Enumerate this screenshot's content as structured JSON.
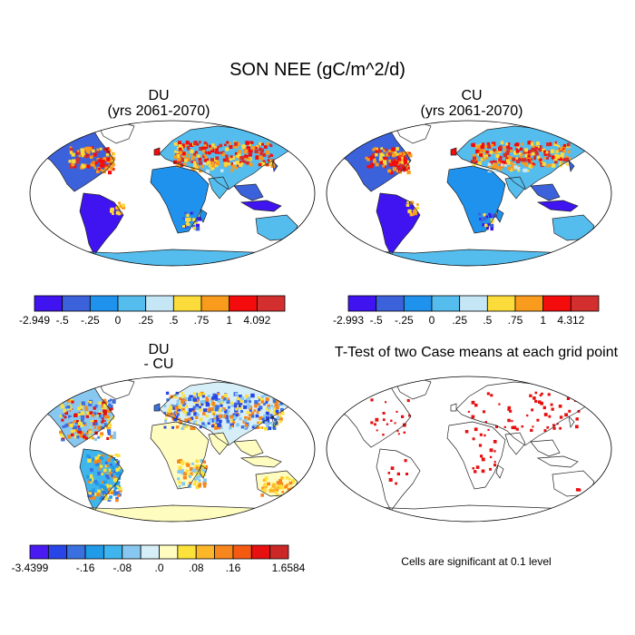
{
  "title": "SON NEE (gC/m^2/d)",
  "panels": [
    {
      "title": "DU",
      "subtitle": "(yrs 2061-2070)",
      "colorbar": {
        "labels": [
          "-2.949",
          "-.5",
          "-.25",
          "0",
          ".25",
          ".5",
          ".75",
          "1",
          "4.092"
        ],
        "colors": [
          "#3f14f0",
          "#3c62db",
          "#1f92ed",
          "#55bdee",
          "#c5e6f5",
          "#fcdc3a",
          "#f99b1c",
          "#f40c0c",
          "#d42f2f"
        ]
      }
    },
    {
      "title": "CU",
      "subtitle": "(yrs 2061-2070)",
      "colorbar": {
        "labels": [
          "-2.993",
          "-.5",
          "-.25",
          "0",
          ".25",
          ".5",
          ".75",
          "1",
          "4.312"
        ],
        "colors": [
          "#3f14f0",
          "#3c62db",
          "#1f92ed",
          "#55bdee",
          "#c5e6f5",
          "#fcdc3a",
          "#f99b1c",
          "#f40c0c",
          "#d42f2f"
        ]
      }
    },
    {
      "title": "DU",
      "subtitle": "- CU",
      "colorbar": {
        "labels": [
          "-3.4399",
          "-.16",
          "-.08",
          ".0",
          ".08",
          ".16",
          "1.6584"
        ],
        "label_positions": [
          0,
          3,
          5,
          7,
          9,
          11,
          14
        ],
        "colors": [
          "#4a1af2",
          "#2846e8",
          "#3b70e0",
          "#1f9be8",
          "#3fb5ee",
          "#88c8f0",
          "#d6eef7",
          "#fffcc0",
          "#fce23a",
          "#fbb62a",
          "#f7861c",
          "#f45a12",
          "#e61010",
          "#cc2828"
        ]
      }
    },
    {
      "title": "T-Test of two Case means at each grid point",
      "note": "Cells are significant at 0.1 level"
    }
  ]
}
